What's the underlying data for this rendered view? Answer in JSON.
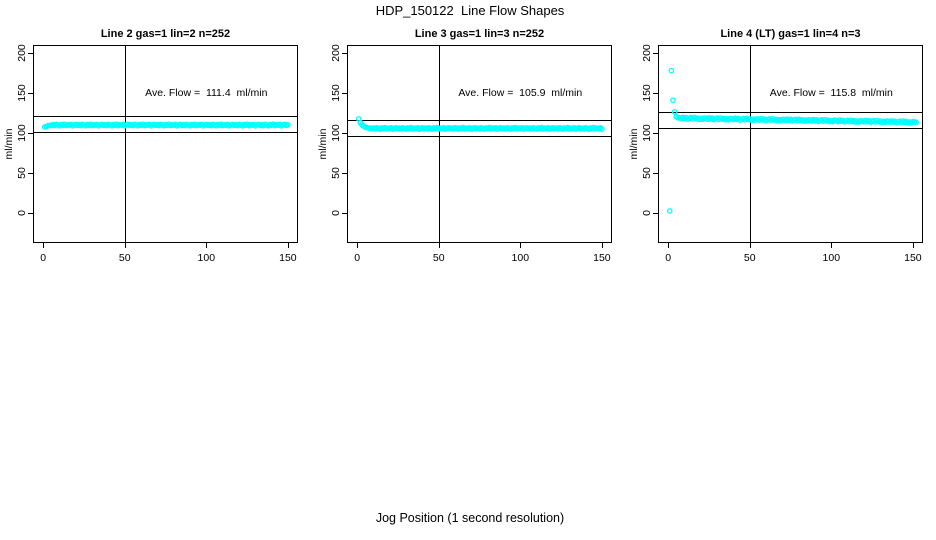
{
  "chart_data": {
    "type": "scatter",
    "title": "HDP_150122  Line Flow Shapes",
    "xlabel": "Jog Position (1 second resolution)",
    "ylabel": "ml/min",
    "x_ticks": [
      0,
      50,
      100,
      150
    ],
    "y_ticks": [
      0,
      50,
      100,
      150,
      200
    ],
    "x_range": [
      -6.2,
      156.2
    ],
    "y_range": [
      -37.5,
      210
    ],
    "grid": false,
    "marker": "open-circle",
    "colors": {
      "points": "#00FFFF",
      "axis": "#000000",
      "text": "#000000",
      "background": "#ffffff"
    },
    "annotation_pos": {
      "x": 100,
      "y": 150
    },
    "panels": [
      {
        "title": "Line 2 gas=1 lin=2 n=252",
        "annotation": "Ave. Flow =  111.4  ml/min",
        "ave_flow": 111.4,
        "n": 252,
        "ref_lines": [
          121.4,
          101.4
        ],
        "vline_x": 50,
        "points_x_start": 1,
        "points_x_step": 1,
        "points_y": [
          107.5,
          108.3,
          109.1,
          109.6,
          109.6,
          110.4,
          109.3,
          110.8,
          110.0,
          109.1,
          110.5,
          109.7,
          111.0,
          109.4,
          110.2,
          109.8,
          110.6,
          109.0,
          110.1,
          110.7,
          109.6,
          110.4,
          109.3,
          110.8,
          110.0,
          109.1,
          110.5,
          109.7,
          111.0,
          109.4,
          110.2,
          109.8,
          110.6,
          109.0,
          110.1,
          110.7,
          109.6,
          110.4,
          109.3,
          110.8,
          110.0,
          109.1,
          110.5,
          109.7,
          111.0,
          109.4,
          110.2,
          109.8,
          110.6,
          109.0,
          110.1,
          110.7,
          109.6,
          110.4,
          109.3,
          110.8,
          110.0,
          109.1,
          110.5,
          109.7,
          111.0,
          109.4,
          110.2,
          109.8,
          110.6,
          109.0,
          110.1,
          110.7,
          109.6,
          110.4,
          109.3,
          110.8,
          110.0,
          109.1,
          110.5,
          109.7,
          111.0,
          109.4,
          110.2,
          109.8,
          110.6,
          109.0,
          110.1,
          110.7,
          109.6,
          110.4,
          109.3,
          110.8,
          110.0,
          109.1,
          110.5,
          109.7,
          111.0,
          109.4,
          110.2,
          109.8,
          110.6,
          109.0,
          110.1,
          110.7,
          109.6,
          110.4,
          109.3,
          110.8,
          110.0,
          109.1,
          110.5,
          109.7,
          111.0,
          109.4,
          110.2,
          109.8,
          110.6,
          109.0,
          110.1,
          110.7,
          109.6,
          110.4,
          109.3,
          110.8,
          110.0,
          109.1,
          110.5,
          109.7,
          111.0,
          109.4,
          110.2,
          109.8,
          110.6,
          109.0,
          110.1,
          110.7,
          109.6,
          110.4,
          109.3,
          110.8,
          110.0,
          109.1,
          110.5,
          109.7,
          111.0,
          109.4,
          110.2,
          109.8,
          110.6,
          109.0,
          110.1,
          110.7,
          109.6,
          110.4
        ]
      },
      {
        "title": "Line 3 gas=1 lin=3 n=252",
        "annotation": "Ave. Flow =  105.9  ml/min",
        "ave_flow": 105.9,
        "n": 252,
        "ref_lines": [
          115.9,
          95.9
        ],
        "vline_x": 50,
        "points_x_start": 1,
        "points_x_step": 1,
        "points_y": [
          117.6,
          112.9,
          110.3,
          108.6,
          107.4,
          106.7,
          106.2,
          105.9,
          105.5,
          106.2,
          105.1,
          106.5,
          105.8,
          104.9,
          106.3,
          105.5,
          106.7,
          105.2,
          106.0,
          105.6,
          106.4,
          104.9,
          105.9,
          106.4,
          105.5,
          106.2,
          105.1,
          106.5,
          105.8,
          104.9,
          106.3,
          105.5,
          106.7,
          105.2,
          106.0,
          105.6,
          106.4,
          104.9,
          105.9,
          106.4,
          105.5,
          106.2,
          105.1,
          106.5,
          105.8,
          104.9,
          106.3,
          105.5,
          106.7,
          105.2,
          106.0,
          105.6,
          106.4,
          104.9,
          105.9,
          106.4,
          105.5,
          106.2,
          105.1,
          106.5,
          105.8,
          104.9,
          106.3,
          105.5,
          106.7,
          105.2,
          106.0,
          105.6,
          106.4,
          104.9,
          105.9,
          106.4,
          105.5,
          106.2,
          105.1,
          106.5,
          105.8,
          104.9,
          106.3,
          105.5,
          106.7,
          105.2,
          106.0,
          105.6,
          106.4,
          104.9,
          105.9,
          106.4,
          105.5,
          106.2,
          105.1,
          106.5,
          105.8,
          104.9,
          106.3,
          105.5,
          106.7,
          105.2,
          106.0,
          105.6,
          106.4,
          104.9,
          105.9,
          106.4,
          105.5,
          106.2,
          105.1,
          106.5,
          105.8,
          104.9,
          106.3,
          105.5,
          106.7,
          105.2,
          106.0,
          105.6,
          106.4,
          104.9,
          105.9,
          106.4,
          105.5,
          106.2,
          105.1,
          106.5,
          105.8,
          104.9,
          106.3,
          105.5,
          106.7,
          105.2,
          106.0,
          105.6,
          106.4,
          104.9,
          105.9,
          106.4,
          105.5,
          106.2,
          105.1,
          106.5,
          105.8,
          104.9,
          106.3,
          105.5,
          106.7,
          105.2,
          106.0,
          105.6,
          106.4,
          104.9
        ]
      },
      {
        "title": "Line 4 (LT) gas=1 lin=4 n=3",
        "annotation": "Ave. Flow =  115.8  ml/min",
        "ave_flow": 115.8,
        "n": 3,
        "ref_lines": [
          125.8,
          105.8
        ],
        "vline_x": 50,
        "points_x_start": 1,
        "points_x_step": 1,
        "points_y": [
          2.5,
          178.0,
          141.0,
          126.5,
          120.6,
          119.0,
          119.0,
          117.8,
          119.5,
          118.1,
          119.2,
          117.3,
          118.5,
          119.2,
          117.6,
          119.4,
          118.0,
          118.7,
          117.0,
          118.3,
          117.2,
          118.7,
          118.4,
          117.2,
          118.9,
          117.5,
          118.6,
          116.7,
          117.9,
          118.6,
          117.0,
          118.8,
          117.4,
          118.1,
          116.4,
          117.7,
          116.6,
          118.1,
          117.9,
          116.7,
          118.4,
          117.0,
          118.1,
          116.2,
          117.4,
          118.1,
          116.5,
          118.3,
          116.9,
          117.6,
          115.9,
          117.2,
          116.1,
          117.6,
          117.3,
          116.1,
          117.8,
          116.4,
          117.5,
          115.6,
          116.8,
          117.5,
          115.9,
          117.7,
          116.3,
          117.0,
          115.3,
          116.6,
          115.5,
          117.0,
          116.8,
          115.6,
          117.3,
          115.9,
          117.0,
          115.1,
          116.3,
          117.0,
          115.4,
          117.2,
          115.8,
          116.5,
          114.8,
          116.1,
          115.0,
          116.5,
          116.2,
          115.0,
          116.7,
          115.3,
          116.4,
          114.5,
          115.7,
          116.4,
          114.8,
          116.6,
          115.2,
          115.9,
          114.2,
          115.5,
          114.4,
          115.9,
          115.6,
          114.4,
          116.1,
          114.7,
          115.8,
          113.9,
          115.1,
          115.8,
          114.2,
          116.0,
          114.6,
          115.3,
          113.6,
          114.9,
          113.8,
          115.3,
          115.1,
          113.9,
          115.6,
          114.2,
          115.3,
          113.4,
          114.6,
          115.3,
          113.7,
          115.5,
          114.1,
          114.8,
          113.1,
          114.4,
          113.3,
          114.8,
          114.5,
          113.3,
          115.0,
          113.6,
          114.7,
          112.8,
          114.0,
          114.7,
          113.1,
          114.9,
          113.5,
          114.2,
          112.5,
          113.8,
          112.7,
          114.2,
          113.9,
          113.2
        ]
      }
    ]
  }
}
